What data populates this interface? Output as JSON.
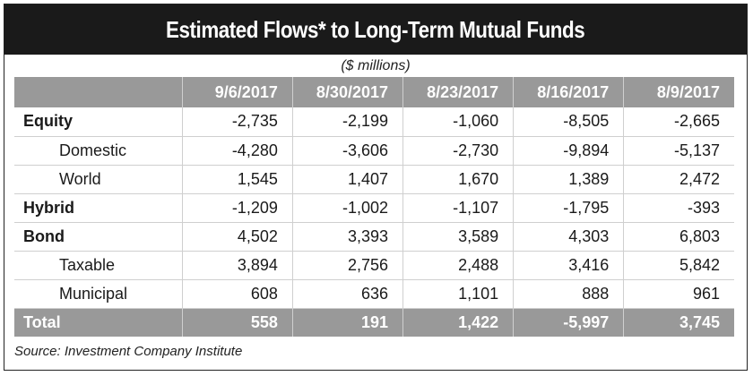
{
  "title": "Estimated Flows* to Long-Term Mutual Funds",
  "subtitle": "($ millions)",
  "source": "Source: Investment Company Institute",
  "colors": {
    "title_bg": "#1a1a1a",
    "header_bg": "#999999",
    "grid_line": "#cfcfcf"
  },
  "chart_data": {
    "type": "table",
    "title": "Estimated Flows* to Long-Term Mutual Funds",
    "subtitle": "($ millions)",
    "columns": [
      "9/6/2017",
      "8/30/2017",
      "8/23/2017",
      "8/16/2017",
      "8/9/2017"
    ],
    "rows": [
      {
        "label": "Equity",
        "level": "main",
        "values": [
          "-2,735",
          "-2,199",
          "-1,060",
          "-8,505",
          "-2,665"
        ]
      },
      {
        "label": "Domestic",
        "level": "sub",
        "values": [
          "-4,280",
          "-3,606",
          "-2,730",
          "-9,894",
          "-5,137"
        ]
      },
      {
        "label": "World",
        "level": "sub",
        "values": [
          "1,545",
          "1,407",
          "1,670",
          "1,389",
          "2,472"
        ]
      },
      {
        "label": "Hybrid",
        "level": "main",
        "values": [
          "-1,209",
          "-1,002",
          "-1,107",
          "-1,795",
          "-393"
        ]
      },
      {
        "label": "Bond",
        "level": "main",
        "values": [
          "4,502",
          "3,393",
          "3,589",
          "4,303",
          "6,803"
        ]
      },
      {
        "label": "Taxable",
        "level": "sub",
        "values": [
          "3,894",
          "2,756",
          "2,488",
          "3,416",
          "5,842"
        ]
      },
      {
        "label": "Municipal",
        "level": "sub",
        "values": [
          "608",
          "636",
          "1,101",
          "888",
          "961"
        ]
      }
    ],
    "total": {
      "label": "Total",
      "values": [
        "558",
        "191",
        "1,422",
        "-5,997",
        "3,745"
      ]
    }
  }
}
